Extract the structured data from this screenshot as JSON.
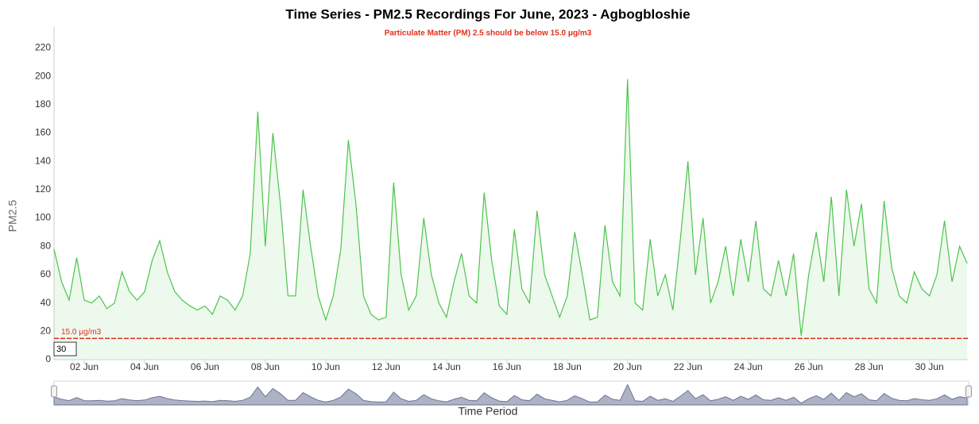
{
  "chart_data": {
    "type": "line",
    "title": "Time Series - PM2.5 Recordings For June, 2023 - Agbogbloshie",
    "subtitle": "Particulate Matter (PM) 2.5 should be below 15.0 μg/m3",
    "y_label": "PM2.5",
    "x_label": "Time Period",
    "range_selector": "30",
    "threshold": {
      "value": 15,
      "label": "15.0 μg/m3",
      "color": "#e0301e"
    },
    "color": "#4cc44c",
    "navigator_color": "#8a93ad",
    "x": [
      1,
      1.25,
      1.5,
      1.75,
      2,
      2.25,
      2.5,
      2.75,
      3,
      3.25,
      3.5,
      3.75,
      4,
      4.25,
      4.5,
      4.75,
      5,
      5.25,
      5.5,
      5.75,
      6,
      6.25,
      6.5,
      6.75,
      7,
      7.25,
      7.5,
      7.75,
      8,
      8.25,
      8.5,
      8.75,
      9,
      9.25,
      9.5,
      9.75,
      10,
      10.25,
      10.5,
      10.75,
      11,
      11.25,
      11.5,
      11.75,
      12,
      12.25,
      12.5,
      12.75,
      13,
      13.25,
      13.5,
      13.75,
      14,
      14.25,
      14.5,
      14.75,
      15,
      15.25,
      15.5,
      15.75,
      16,
      16.25,
      16.5,
      16.75,
      17,
      17.25,
      17.5,
      17.75,
      18,
      18.25,
      18.5,
      18.75,
      19,
      19.25,
      19.5,
      19.75,
      20,
      20.25,
      20.5,
      20.75,
      21,
      21.25,
      21.5,
      21.75,
      22,
      22.25,
      22.5,
      22.75,
      23,
      23.25,
      23.5,
      23.75,
      24,
      24.25,
      24.5,
      24.75,
      25,
      25.25,
      25.5,
      25.75,
      26,
      26.25,
      26.5,
      26.75,
      27,
      27.25,
      27.5,
      27.75,
      28,
      28.25,
      28.5,
      28.75,
      29,
      29.25,
      29.5,
      29.75,
      30,
      30.25,
      30.5,
      30.75,
      31,
      31.25
    ],
    "values": [
      78,
      55,
      42,
      72,
      42,
      40,
      45,
      36,
      40,
      62,
      48,
      42,
      48,
      70,
      84,
      62,
      48,
      42,
      38,
      35,
      38,
      32,
      45,
      42,
      35,
      45,
      75,
      175,
      80,
      160,
      110,
      45,
      45,
      120,
      80,
      45,
      28,
      45,
      78,
      155,
      110,
      45,
      32,
      28,
      30,
      125,
      60,
      35,
      45,
      100,
      60,
      40,
      30,
      55,
      75,
      45,
      40,
      118,
      70,
      38,
      32,
      92,
      50,
      40,
      105,
      60,
      45,
      30,
      45,
      90,
      60,
      28,
      30,
      95,
      55,
      45,
      198,
      40,
      35,
      85,
      45,
      60,
      35,
      85,
      140,
      60,
      100,
      40,
      55,
      80,
      45,
      85,
      55,
      98,
      50,
      45,
      70,
      45,
      75,
      17,
      60,
      90,
      55,
      115,
      45,
      120,
      80,
      110,
      50,
      40,
      112,
      65,
      45,
      40,
      62,
      50,
      45,
      60,
      98,
      55,
      80,
      68
    ],
    "xlim": [
      1,
      31.3
    ],
    "ylim": [
      0,
      232
    ],
    "yticks": [
      0,
      20,
      40,
      60,
      80,
      100,
      120,
      140,
      160,
      180,
      200,
      220
    ],
    "xticks": [
      {
        "value": 2,
        "label": "02 Jun"
      },
      {
        "value": 4,
        "label": "04 Jun"
      },
      {
        "value": 6,
        "label": "06 Jun"
      },
      {
        "value": 8,
        "label": "08 Jun"
      },
      {
        "value": 10,
        "label": "10 Jun"
      },
      {
        "value": 12,
        "label": "12 Jun"
      },
      {
        "value": 14,
        "label": "14 Jun"
      },
      {
        "value": 16,
        "label": "16 Jun"
      },
      {
        "value": 18,
        "label": "18 Jun"
      },
      {
        "value": 20,
        "label": "20 Jun"
      },
      {
        "value": 22,
        "label": "22 Jun"
      },
      {
        "value": 24,
        "label": "24 Jun"
      },
      {
        "value": 26,
        "label": "26 Jun"
      },
      {
        "value": 28,
        "label": "28 Jun"
      },
      {
        "value": 30,
        "label": "30 Jun"
      }
    ],
    "grid": false
  }
}
